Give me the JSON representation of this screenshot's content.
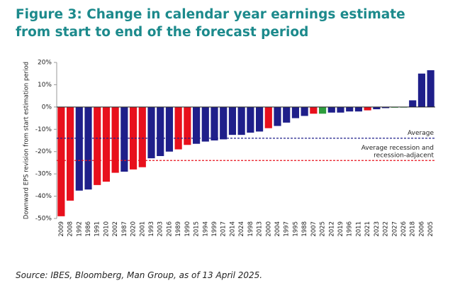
{
  "chart_data": {
    "type": "bar",
    "title": "Figure 3: Change in calendar year earnings estimate from start to end of the forecast period",
    "y_label": "Downward EPS revision from start estimation period",
    "source": "Source: IBES, Bloomberg, Man Group, as of 13 April 2025.",
    "categories": [
      "2009",
      "2008",
      "1992",
      "1986",
      "1991",
      "2010",
      "2002",
      "1987",
      "2020",
      "2001",
      "1993",
      "2003",
      "2016",
      "1989",
      "1990",
      "2015",
      "1994",
      "1999",
      "2017",
      "2014",
      "2024",
      "1998",
      "2013",
      "2000",
      "2004",
      "1997",
      "1995",
      "1988",
      "2007",
      "2025",
      "2012",
      "2019",
      "1996",
      "2011",
      "2021",
      "2023",
      "2022",
      "2027",
      "2026",
      "2018",
      "2006",
      "2005"
    ],
    "values": [
      -49,
      -42,
      -37.5,
      -37,
      -35,
      -33.5,
      -29.5,
      -29,
      -28,
      -27,
      -23,
      -22,
      -20,
      -19,
      -17,
      -16.5,
      -15.5,
      -15,
      -14.5,
      -12.5,
      -12.5,
      -11.5,
      -11,
      -9.5,
      -8.5,
      -7,
      -5,
      -4,
      -3,
      -3,
      -2.5,
      -2.5,
      -2,
      -2,
      -1.5,
      -1,
      -0.5,
      -0.3,
      -0.2,
      3,
      15,
      16.5
    ],
    "colors": [
      "#e8101c",
      "#e8101c",
      "#1f1f8a",
      "#1f1f8a",
      "#e8101c",
      "#e8101c",
      "#e8101c",
      "#1f1f8a",
      "#e8101c",
      "#e8101c",
      "#1f1f8a",
      "#1f1f8a",
      "#1f1f8a",
      "#e8101c",
      "#e8101c",
      "#1f1f8a",
      "#1f1f8a",
      "#1f1f8a",
      "#1f1f8a",
      "#1f1f8a",
      "#1f1f8a",
      "#1f1f8a",
      "#1f1f8a",
      "#e8101c",
      "#1f1f8a",
      "#1f1f8a",
      "#1f1f8a",
      "#1f1f8a",
      "#e8101c",
      "#2e9e3e",
      "#1f1f8a",
      "#1f1f8a",
      "#1f1f8a",
      "#1f1f8a",
      "#e8101c",
      "#1f1f8a",
      "#1f1f8a",
      "#2e9e3e",
      "#2e9e3e",
      "#1f1f8a",
      "#1f1f8a",
      "#1f1f8a"
    ],
    "ylim": [
      -50,
      20
    ],
    "yticks": [
      {
        "value": -50,
        "label": "-50%"
      },
      {
        "value": -40,
        "label": "-40%"
      },
      {
        "value": -30,
        "label": "-30%"
      },
      {
        "value": -20,
        "label": "-20%"
      },
      {
        "value": -10,
        "label": "-10%"
      },
      {
        "value": 0,
        "label": "0%"
      },
      {
        "value": 10,
        "label": "10%"
      },
      {
        "value": 20,
        "label": "20%"
      }
    ],
    "reference_lines": [
      {
        "value": -14,
        "color": "#1f1f8a",
        "label": [
          "Average"
        ]
      },
      {
        "value": -24,
        "color": "#e8101c",
        "label": [
          "Average recession and",
          "recession-adjacent"
        ]
      }
    ]
  }
}
